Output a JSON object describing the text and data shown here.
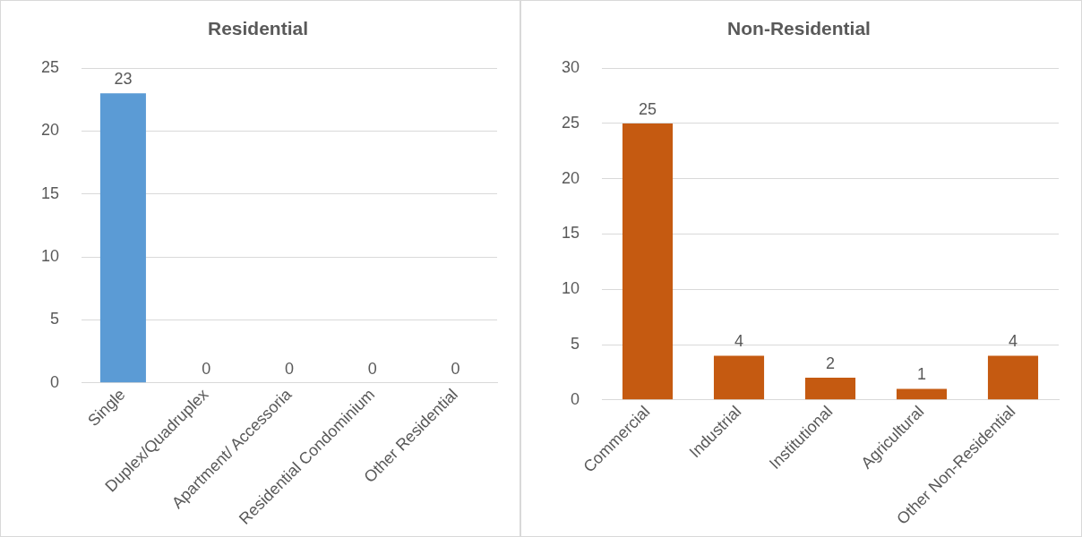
{
  "chart_data": [
    {
      "type": "bar",
      "title": "Residential",
      "categories": [
        "Single",
        "Duplex/Quadruplex",
        "Apartment/ Accessoria",
        "Residential Condominium",
        "Other Residential"
      ],
      "values": [
        23,
        0,
        0,
        0,
        0
      ],
      "color": "#5b9bd5",
      "ylim": [
        0,
        25
      ],
      "yticks": [
        0,
        5,
        10,
        15,
        20,
        25
      ],
      "grid": "y",
      "data_labels": true,
      "legend": false
    },
    {
      "type": "bar",
      "title": "Non-Residential",
      "categories": [
        "Commercial",
        "Industrial",
        "Institutional",
        "Agricultural",
        "Other Non-Residential"
      ],
      "values": [
        25,
        4,
        2,
        1,
        4
      ],
      "color": "#c55a11",
      "ylim": [
        0,
        30
      ],
      "yticks": [
        0,
        5,
        10,
        15,
        20,
        25,
        30
      ],
      "grid": "y",
      "data_labels": true,
      "legend": false
    }
  ]
}
